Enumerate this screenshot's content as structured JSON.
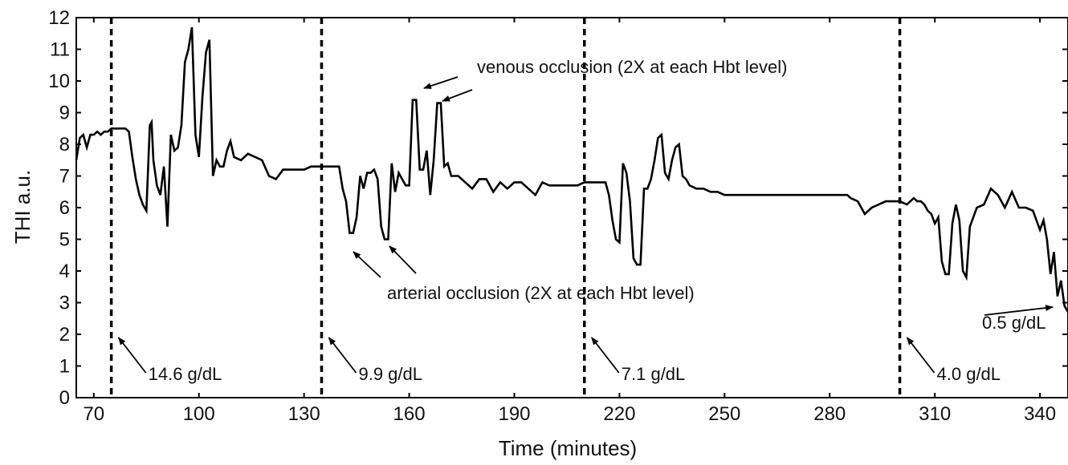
{
  "chart_data": {
    "type": "line",
    "title": "",
    "xlabel": "Time (minutes)",
    "ylabel": "THI a.u.",
    "xlim": [
      65,
      348
    ],
    "ylim": [
      0,
      12
    ],
    "x_ticks": [
      70,
      100,
      130,
      160,
      190,
      220,
      250,
      280,
      310,
      340
    ],
    "y_ticks": [
      0,
      1,
      2,
      3,
      4,
      5,
      6,
      7,
      8,
      9,
      10,
      11,
      12
    ],
    "grid": false,
    "legend": "none",
    "line_color": "#000000",
    "series": [
      {
        "name": "",
        "x": [
          65,
          66,
          67,
          68,
          69,
          70,
          71,
          72,
          73,
          74,
          75,
          76,
          77,
          78,
          79,
          80,
          81,
          82,
          83,
          84,
          85,
          86,
          86.5,
          87,
          88,
          89,
          90,
          91,
          92,
          93,
          94,
          95,
          96,
          97,
          98,
          99,
          100,
          101,
          102,
          103,
          104,
          105,
          106,
          107,
          108,
          109,
          110,
          112,
          114,
          116,
          118,
          120,
          122,
          124,
          126,
          128,
          130,
          132,
          134,
          136,
          138,
          140,
          141,
          142,
          143,
          144,
          145,
          146,
          147,
          148,
          149,
          150,
          151,
          152,
          153,
          154,
          155,
          156,
          157,
          158,
          159,
          160,
          161,
          162,
          163,
          164,
          165,
          166,
          167,
          168,
          169,
          170,
          171,
          172,
          174,
          176,
          178,
          180,
          182,
          184,
          186,
          188,
          190,
          192,
          194,
          196,
          198,
          200,
          202,
          204,
          206,
          208,
          210,
          212,
          214,
          216,
          217,
          218,
          219,
          220,
          221,
          222,
          223,
          224,
          225,
          226,
          227,
          228,
          229,
          230,
          231,
          232,
          233,
          234,
          235,
          236,
          237,
          238,
          239,
          240,
          242,
          244,
          246,
          248,
          250,
          255,
          260,
          265,
          270,
          275,
          280,
          284,
          285,
          286,
          288,
          290,
          292,
          294,
          296,
          298,
          300,
          302,
          304,
          305,
          306,
          307,
          308,
          309,
          310,
          311,
          312,
          313,
          314,
          315,
          316,
          317,
          318,
          319,
          320,
          322,
          324,
          326,
          328,
          330,
          332,
          334,
          336,
          338,
          339,
          340,
          341,
          342,
          343,
          344,
          345,
          346,
          347,
          348
        ],
        "y": [
          7.5,
          8.2,
          8.3,
          7.9,
          8.3,
          8.3,
          8.4,
          8.3,
          8.4,
          8.4,
          8.5,
          8.5,
          8.5,
          8.5,
          8.5,
          8.4,
          7.6,
          6.9,
          6.4,
          6.1,
          5.9,
          8.6,
          8.7,
          7.5,
          6.7,
          6.4,
          7.3,
          5.4,
          8.3,
          7.8,
          7.9,
          8.6,
          10.6,
          11.0,
          11.7,
          8.3,
          7.6,
          9.5,
          10.9,
          11.3,
          7.0,
          7.5,
          7.3,
          7.3,
          7.8,
          8.1,
          7.6,
          7.5,
          7.7,
          7.6,
          7.5,
          7.0,
          6.9,
          7.2,
          7.2,
          7.2,
          7.2,
          7.3,
          7.3,
          7.3,
          7.3,
          7.3,
          6.6,
          6.2,
          5.2,
          5.2,
          5.7,
          7.0,
          6.6,
          7.1,
          7.1,
          7.2,
          6.9,
          5.4,
          5.0,
          5.0,
          7.4,
          6.5,
          7.1,
          6.9,
          6.7,
          6.7,
          9.4,
          9.4,
          7.2,
          7.2,
          7.8,
          6.4,
          7.5,
          9.3,
          9.3,
          7.3,
          7.4,
          7.0,
          7.0,
          6.8,
          6.6,
          6.9,
          6.9,
          6.5,
          6.8,
          6.6,
          6.8,
          6.8,
          6.6,
          6.4,
          6.8,
          6.7,
          6.7,
          6.7,
          6.7,
          6.7,
          6.8,
          6.8,
          6.8,
          6.8,
          6.4,
          5.6,
          5.0,
          4.9,
          7.4,
          7.1,
          6.2,
          4.4,
          4.2,
          4.2,
          6.6,
          6.6,
          6.9,
          7.5,
          8.2,
          8.3,
          7.1,
          6.9,
          7.5,
          7.9,
          8.0,
          7.0,
          6.9,
          6.7,
          6.6,
          6.6,
          6.5,
          6.5,
          6.4,
          6.4,
          6.4,
          6.4,
          6.4,
          6.4,
          6.4,
          6.4,
          6.4,
          6.3,
          6.2,
          5.8,
          6.0,
          6.1,
          6.2,
          6.2,
          6.2,
          6.1,
          6.3,
          6.2,
          6.2,
          6.1,
          5.9,
          5.8,
          5.5,
          5.7,
          4.3,
          3.9,
          3.9,
          5.5,
          6.1,
          5.6,
          4.0,
          3.8,
          5.4,
          6.0,
          6.1,
          6.6,
          6.4,
          6.0,
          6.5,
          6.0,
          6.0,
          5.9,
          5.6,
          5.3,
          5.6,
          5.0,
          3.9,
          4.6,
          3.2,
          3.7,
          2.9,
          2.7
        ]
      }
    ],
    "hbt_markers": [
      {
        "x": 75,
        "label": "14.6 g/dL"
      },
      {
        "x": 135,
        "label": "9.9 g/dL"
      },
      {
        "x": 210,
        "label": "7.1 g/dL"
      },
      {
        "x": 300,
        "label": "4.0 g/dL"
      }
    ],
    "annotations": {
      "venous": "venous occlusion (2X at each Hbt level)",
      "arterial": "arterial occlusion (2X at each Hbt level)",
      "final": "0.5 g/dL"
    }
  }
}
